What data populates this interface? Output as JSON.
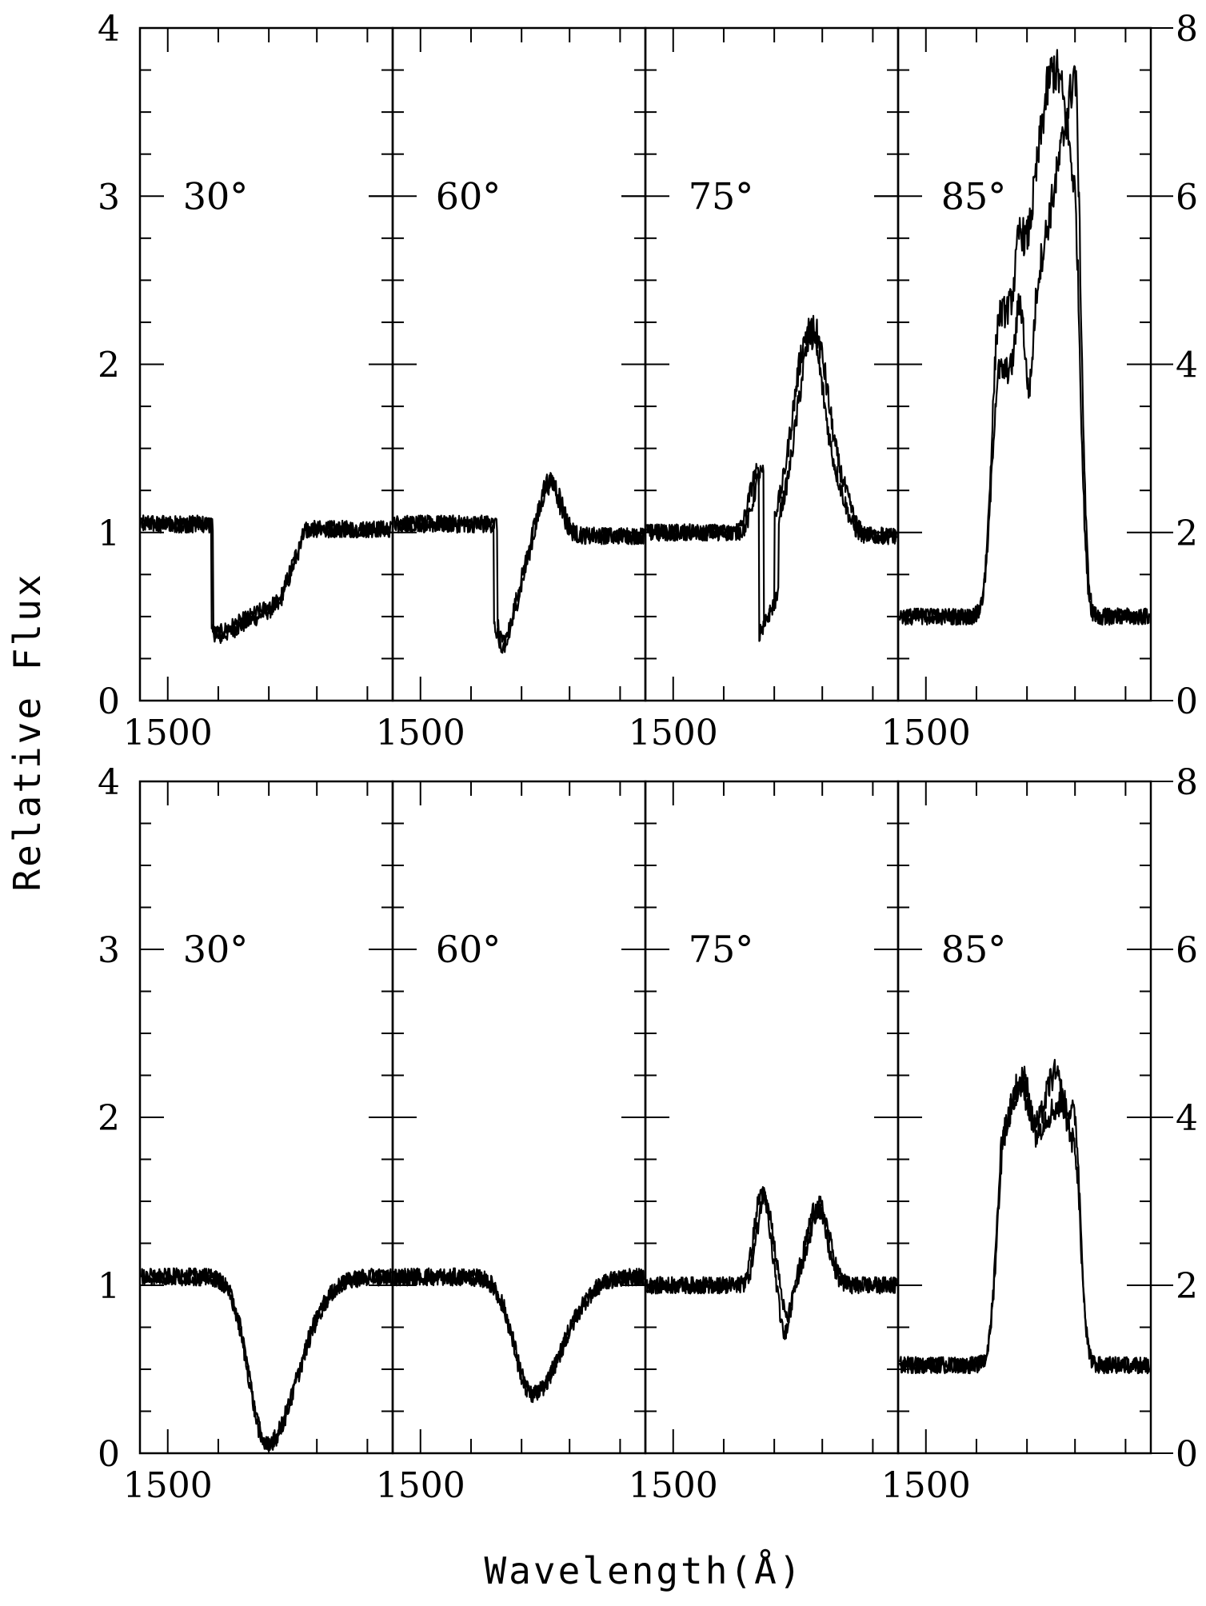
{
  "figure": {
    "xlabel": "Wavelength(Å)",
    "ylabel": "Relative Flux"
  },
  "chart_data": {
    "type": "line",
    "xlabel": "Wavelength(Å)",
    "ylabel": "Relative Flux",
    "left_axis": {
      "ylim": [
        0,
        4
      ],
      "ticks": [
        "0",
        "1",
        "2",
        "3",
        "4"
      ]
    },
    "right_axis": {
      "applies_to": "85° panels",
      "ylim": [
        0,
        8
      ],
      "ticks": [
        "0",
        "2",
        "4",
        "6",
        "8"
      ]
    },
    "x_tick_label": "1500",
    "rows": [
      {
        "row": "top",
        "panels": [
          {
            "label": "30°",
            "profile": "p-cygni-absorption",
            "feature_x": 0.28,
            "continuum": 1.05,
            "trough_min": 0.15,
            "series_count": 2
          },
          {
            "label": "60°",
            "profile": "p-cygni",
            "feature_x": 0.4,
            "continuum": 1.05,
            "trough_min": 0.15,
            "peak": 1.3,
            "series_count": 2
          },
          {
            "label": "75°",
            "profile": "p-cygni-emission",
            "feature_x": 0.45,
            "continuum": 1.0,
            "trough_min": 0.4,
            "peak": 2.2,
            "series_count": 2
          },
          {
            "label": "85°",
            "profile": "emission",
            "axis": "right",
            "continuum_right_units": 1.0,
            "peak_right_units": 7.5,
            "series_count": 2
          }
        ]
      },
      {
        "row": "bottom",
        "panels": [
          {
            "label": "30°",
            "profile": "absorption",
            "feature_x": 0.5,
            "continuum": 1.05,
            "trough_min": 0.05,
            "series_count": 2
          },
          {
            "label": "60°",
            "profile": "absorption",
            "feature_x": 0.55,
            "continuum": 1.05,
            "trough_min": 0.35,
            "series_count": 2
          },
          {
            "label": "75°",
            "profile": "double-emission",
            "feature_x": 0.55,
            "continuum": 1.0,
            "trough_min": 0.7,
            "peak": 1.55,
            "series_count": 2
          },
          {
            "label": "85°",
            "profile": "double-emission",
            "axis": "right",
            "continuum_right_units": 1.05,
            "peak_right_units": 4.5,
            "series_count": 2
          }
        ]
      }
    ]
  }
}
